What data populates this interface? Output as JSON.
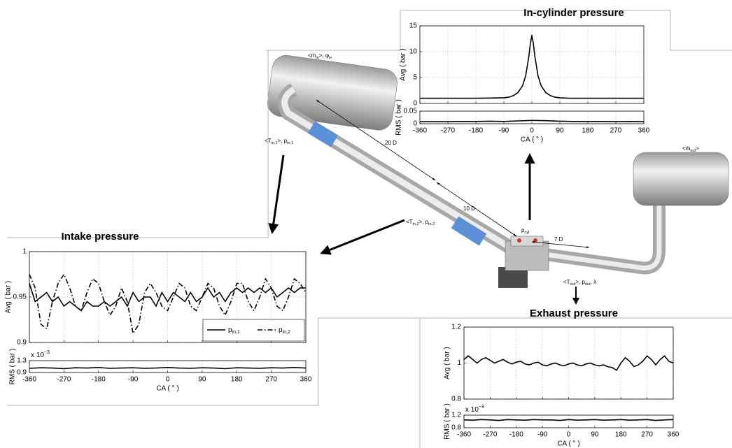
{
  "chart_data": [
    {
      "type": "line",
      "title": "In-cylinder pressure",
      "ylabel": "Avg ( bar )",
      "xlim": [
        -360,
        360
      ],
      "ylim": [
        0,
        15
      ],
      "yticks": [
        0,
        5,
        10,
        15
      ],
      "grid": true,
      "x": [
        -360,
        -270,
        -180,
        -120,
        -90,
        -75,
        -60,
        -45,
        -30,
        -20,
        -10,
        -5,
        0,
        5,
        10,
        20,
        30,
        45,
        60,
        75,
        90,
        120,
        180,
        270,
        360
      ],
      "series": [
        {
          "color": "#000000",
          "style": "solid",
          "values": [
            1,
            1,
            1,
            1.05,
            1.1,
            1.2,
            1.5,
            2.1,
            3.4,
            5.3,
            9,
            11.5,
            13.2,
            11.5,
            9,
            5.3,
            3.4,
            2.1,
            1.5,
            1.2,
            1.1,
            1,
            1,
            1,
            1
          ]
        }
      ]
    },
    {
      "type": "line",
      "ylabel": "RMS ( bar )",
      "xlabel": "CA ( ° )",
      "xlim": [
        -360,
        360
      ],
      "xticks": [
        -360,
        -270,
        -180,
        -90,
        0,
        90,
        180,
        270,
        360
      ],
      "ylim": [
        0,
        0.05
      ],
      "yticks": [
        0,
        0.05
      ],
      "grid": true,
      "x": [
        -360,
        -315,
        -270,
        -225,
        -180,
        -135,
        -90,
        -45,
        0,
        45,
        90,
        135,
        180,
        225,
        270,
        315,
        360
      ],
      "series": [
        {
          "color": "#000000",
          "style": "solid",
          "values": [
            0.008,
            0.008,
            0.008,
            0.009,
            0.009,
            0.01,
            0.009,
            0.011,
            0.013,
            0.012,
            0.01,
            0.009,
            0.009,
            0.009,
            0.008,
            0.009,
            0.008
          ]
        }
      ]
    },
    {
      "type": "line",
      "title": "Intake pressure",
      "ylabel": "Avg ( bar )",
      "xlim": [
        -360,
        360
      ],
      "ylim": [
        0.9,
        1
      ],
      "yticks": [
        0.9,
        0.95,
        1
      ],
      "grid": true,
      "legend": "lower right",
      "x": [
        -360,
        -345,
        -330,
        -315,
        -300,
        -285,
        -270,
        -255,
        -240,
        -225,
        -210,
        -195,
        -180,
        -165,
        -150,
        -135,
        -120,
        -105,
        -90,
        -75,
        -60,
        -45,
        -30,
        -15,
        0,
        15,
        30,
        45,
        60,
        75,
        90,
        105,
        120,
        135,
        150,
        165,
        180,
        195,
        210,
        225,
        240,
        255,
        270,
        285,
        300,
        315,
        330,
        345,
        360
      ],
      "series": [
        {
          "name": "p",
          "name_sub": "in,1",
          "color": "#000000",
          "style": "solid",
          "values": [
            0.965,
            0.945,
            0.95,
            0.955,
            0.945,
            0.95,
            0.94,
            0.945,
            0.94,
            0.935,
            0.945,
            0.94,
            0.94,
            0.945,
            0.94,
            0.945,
            0.95,
            0.94,
            0.955,
            0.945,
            0.95,
            0.95,
            0.94,
            0.955,
            0.945,
            0.955,
            0.95,
            0.945,
            0.955,
            0.945,
            0.95,
            0.96,
            0.95,
            0.955,
            0.945,
            0.955,
            0.96,
            0.955,
            0.96,
            0.955,
            0.96,
            0.955,
            0.96,
            0.95,
            0.955,
            0.96,
            0.955,
            0.96,
            0.96
          ]
        },
        {
          "name": "p",
          "name_sub": "in,2",
          "color": "#000000",
          "style": "dashdot",
          "values": [
            0.975,
            0.96,
            0.92,
            0.915,
            0.945,
            0.965,
            0.975,
            0.96,
            0.94,
            0.935,
            0.955,
            0.97,
            0.965,
            0.945,
            0.93,
            0.94,
            0.96,
            0.945,
            0.91,
            0.92,
            0.955,
            0.965,
            0.955,
            0.94,
            0.935,
            0.95,
            0.965,
            0.96,
            0.94,
            0.935,
            0.95,
            0.965,
            0.96,
            0.94,
            0.93,
            0.945,
            0.965,
            0.965,
            0.945,
            0.935,
            0.95,
            0.97,
            0.96,
            0.94,
            0.935,
            0.95,
            0.97,
            0.965,
            0.955
          ]
        }
      ]
    },
    {
      "type": "line",
      "ylabel": "RMS ( bar )",
      "xlabel": "CA ( ° )",
      "scale": {
        "base": "x 10",
        "exponent": "−3"
      },
      "xlim": [
        -360,
        360
      ],
      "xticks": [
        -360,
        -270,
        -180,
        -90,
        0,
        90,
        180,
        270,
        360
      ],
      "ylim": [
        0.9,
        1.3
      ],
      "yticks": [
        0.9,
        1.3
      ],
      "grid": true,
      "x": [
        -360,
        -330,
        -300,
        -270,
        -240,
        -210,
        -180,
        -150,
        -120,
        -90,
        -60,
        -30,
        0,
        30,
        60,
        90,
        120,
        150,
        180,
        210,
        240,
        270,
        300,
        330,
        360
      ],
      "series": [
        {
          "color": "#000000",
          "style": "solid",
          "values": [
            1.04,
            1.06,
            1.05,
            1.03,
            1.06,
            1.05,
            1.07,
            1.04,
            1.05,
            1.06,
            1.04,
            1.05,
            1.07,
            1.05,
            1.04,
            1.06,
            1.05,
            1.03,
            1.06,
            1.05,
            1.04,
            1.06,
            1.05,
            1.07,
            1.05
          ]
        }
      ]
    },
    {
      "type": "line",
      "title": "Exhaust pressure",
      "ylabel": "Avg ( bar )",
      "xlim": [
        -360,
        360
      ],
      "ylim": [
        0.8,
        1.2
      ],
      "yticks": [
        0.8,
        1,
        1.2
      ],
      "grid": true,
      "x": [
        -360,
        -345,
        -330,
        -315,
        -300,
        -285,
        -270,
        -255,
        -240,
        -225,
        -210,
        -195,
        -180,
        -165,
        -150,
        -135,
        -120,
        -105,
        -90,
        -75,
        -60,
        -45,
        -30,
        -15,
        0,
        15,
        30,
        45,
        60,
        75,
        90,
        105,
        120,
        135,
        150,
        165,
        180,
        195,
        210,
        225,
        240,
        255,
        270,
        285,
        300,
        315,
        330,
        345,
        360
      ],
      "series": [
        {
          "color": "#000000",
          "style": "solid",
          "values": [
            1.02,
            1.04,
            1.02,
            1.0,
            1.02,
            1.03,
            1.015,
            1.0,
            1.01,
            1.02,
            1.005,
            0.995,
            1.005,
            1.01,
            0.995,
            0.99,
            1.0,
            1.005,
            0.99,
            0.985,
            0.995,
            1.0,
            0.99,
            0.985,
            0.995,
            1.0,
            0.99,
            0.985,
            0.995,
            1.0,
            0.99,
            0.985,
            0.99,
            0.98,
            0.975,
            0.96,
            1.0,
            1.03,
            1.01,
            0.98,
            0.99,
            1.01,
            1.04,
            1.02,
            0.99,
            1.02,
            1.04,
            1.01,
            1.0
          ]
        }
      ]
    },
    {
      "type": "line",
      "ylabel": "RMS ( bar )",
      "xlabel": "CA ( ° )",
      "scale": {
        "base": "x 10",
        "exponent": "−3"
      },
      "xlim": [
        -360,
        360
      ],
      "xticks": [
        -360,
        -270,
        -180,
        -90,
        0,
        90,
        180,
        270,
        360
      ],
      "ylim": [
        0.8,
        1.2
      ],
      "yticks": [
        0.8,
        1.2
      ],
      "grid": true,
      "x": [
        -360,
        -330,
        -300,
        -270,
        -240,
        -210,
        -180,
        -150,
        -120,
        -90,
        -60,
        -30,
        0,
        30,
        60,
        90,
        120,
        150,
        180,
        210,
        240,
        270,
        300,
        330,
        360
      ],
      "series": [
        {
          "color": "#000000",
          "style": "solid",
          "values": [
            1.05,
            1.04,
            1.06,
            1.05,
            1.03,
            1.06,
            1.05,
            1.04,
            1.06,
            1.05,
            1.05,
            1.03,
            1.06,
            1.04,
            1.05,
            1.06,
            1.04,
            1.05,
            1.06,
            1.04,
            1.05,
            1.06,
            1.03,
            1.05,
            1.06
          ]
        }
      ]
    }
  ],
  "annotations": [
    [
      {
        "text": "<ṁ"
      },
      {
        "sub": "in"
      },
      {
        "text": ">, φ"
      },
      {
        "sub": "in"
      }
    ],
    [
      {
        "text": "<T"
      },
      {
        "sub": "in,1"
      },
      {
        "text": ">, p"
      },
      {
        "sub": "in,1"
      }
    ],
    [
      {
        "text": "20 D"
      }
    ],
    [
      {
        "text": "<T"
      },
      {
        "sub": "in,2"
      },
      {
        "text": ">, p"
      },
      {
        "sub": "in,2"
      }
    ],
    [
      {
        "text": "10 D"
      }
    ],
    [
      {
        "text": "p"
      },
      {
        "sub": "cyl"
      }
    ],
    [
      {
        "text": "7 D"
      }
    ],
    [
      {
        "text": "<ṁ"
      },
      {
        "sub": "out"
      },
      {
        "text": ">"
      }
    ],
    [
      {
        "text": "<T"
      },
      {
        "sub": "out"
      },
      {
        "text": ">, p"
      },
      {
        "sub": "out"
      },
      {
        "text": ", λ"
      }
    ]
  ]
}
